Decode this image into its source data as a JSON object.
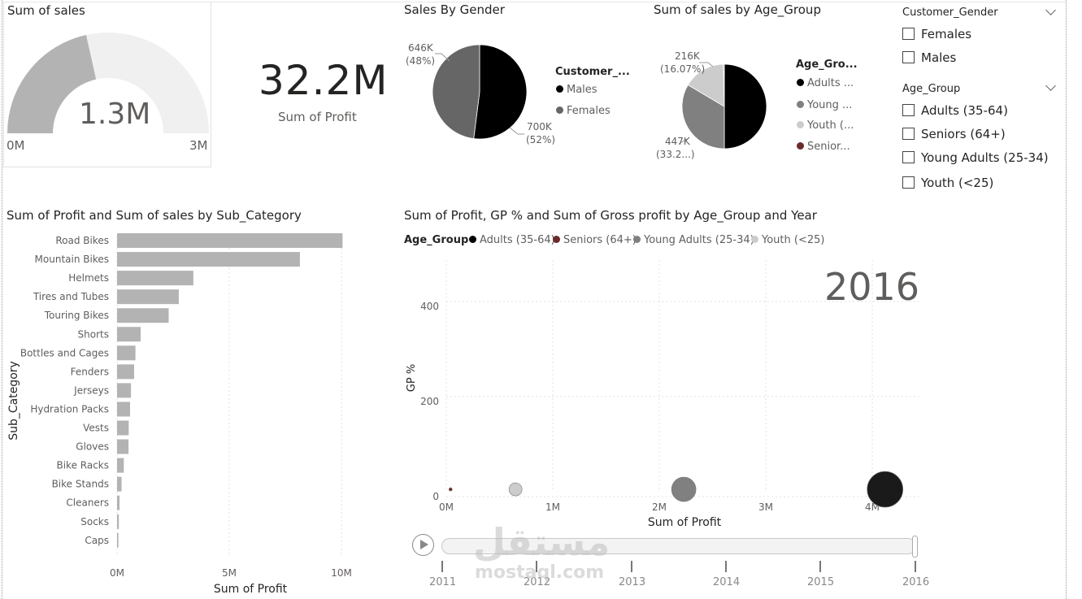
{
  "gauge": {
    "title": "Sum of sales",
    "value_label": "1.3M",
    "min_label": "0M",
    "max_label": "3M",
    "fill_fraction": 0.43,
    "fill_color": "#b3b3b3",
    "track_color": "#f0f0f0"
  },
  "kpi": {
    "value": "32.2M",
    "label": "Sum of Profit"
  },
  "gender_pie": {
    "title": "Sales By Gender",
    "legend_title": "Customer_...",
    "legend": [
      {
        "label": "Males",
        "color": "#000000"
      },
      {
        "label": "Females",
        "color": "#666666"
      }
    ],
    "labels": {
      "females_value": "646K",
      "females_pct": "(48%)",
      "males_value": "700K",
      "males_pct": "(52%)"
    }
  },
  "age_pie": {
    "title": "Sum of sales by Age_Group",
    "legend_title": "Age_Gro...",
    "legend": [
      {
        "label": "Adults ...",
        "color": "#000000"
      },
      {
        "label": "Young ...",
        "color": "#808080"
      },
      {
        "label": "Youth (...",
        "color": "#cccccc"
      },
      {
        "label": "Senior...",
        "color": "#6b2a2a"
      }
    ],
    "labels": {
      "youth_value": "216K",
      "youth_pct": "(16.07%)",
      "young_value": "447K",
      "young_pct": "(33.2...)"
    }
  },
  "slicers": {
    "gender": {
      "title": "Customer_Gender",
      "options": [
        "Females",
        "Males"
      ]
    },
    "age": {
      "title": "Age_Group",
      "options": [
        "Adults (35-64)",
        "Seniors (64+)",
        "Young Adults (25-34)",
        "Youth (<25)"
      ]
    }
  },
  "bar_chart": {
    "title": "Sum of Profit and Sum of sales by Sub_Category",
    "ylabel": "Sub_Category",
    "xlabel": "Sum of Profit",
    "x_ticks": [
      "0M",
      "5M",
      "10M"
    ],
    "bar_color": "#b3b3b3"
  },
  "scatter": {
    "title": "Sum of Profit, GP % and Sum of Gross profit by Age_Group and Year",
    "legend_title": "Age_Group",
    "legend": [
      {
        "label": "Adults (35-64)",
        "color": "#000000"
      },
      {
        "label": "Seniors (64+)",
        "color": "#6b2a2a"
      },
      {
        "label": "Young Adults (25-34)",
        "color": "#808080"
      },
      {
        "label": "Youth (<25)",
        "color": "#cccccc"
      }
    ],
    "year_label": "2016",
    "xlabel": "Sum of Profit",
    "ylabel": "GP %",
    "x_ticks": [
      "0M",
      "1M",
      "2M",
      "3M",
      "4M"
    ],
    "y_ticks": [
      "0",
      "200",
      "400"
    ]
  },
  "play_axis": {
    "years": [
      "2011",
      "2012",
      "2013",
      "2014",
      "2015",
      "2016"
    ],
    "current": "2016"
  },
  "watermark": {
    "text": "مستقل",
    "sub": "mostaql.com"
  },
  "chart_data": [
    {
      "type": "bar",
      "title": "Sum of Profit and Sum of sales by Sub_Category",
      "xlabel": "Sum of Profit",
      "ylabel": "Sub_Category",
      "xlim": [
        0,
        11000000
      ],
      "categories": [
        "Road Bikes",
        "Mountain Bikes",
        "Helmets",
        "Tires and Tubes",
        "Touring Bikes",
        "Shorts",
        "Bottles and Cages",
        "Fenders",
        "Jerseys",
        "Hydration Packs",
        "Vests",
        "Gloves",
        "Bike Racks",
        "Bike Stands",
        "Cleaners",
        "Socks",
        "Caps"
      ],
      "values": [
        10050000,
        8150000,
        3400000,
        2750000,
        2300000,
        1050000,
        820000,
        760000,
        620000,
        580000,
        520000,
        510000,
        300000,
        200000,
        110000,
        80000,
        60000
      ]
    },
    {
      "type": "pie",
      "title": "Sales By Gender",
      "categories": [
        "Males",
        "Females"
      ],
      "values": [
        700000,
        646000
      ],
      "percent": [
        52,
        48
      ]
    },
    {
      "type": "pie",
      "title": "Sum of sales by Age_Group",
      "categories": [
        "Adults (35-64)",
        "Young Adults (25-34)",
        "Youth (<25)",
        "Seniors (64+)"
      ],
      "values": [
        667000,
        447000,
        216000,
        4000
      ],
      "percent": [
        50.4,
        33.2,
        16.07,
        0.3
      ]
    },
    {
      "type": "scatter",
      "title": "Sum of Profit, GP % and Sum of Gross profit by Age_Group and Year",
      "xlabel": "Sum of Profit",
      "ylabel": "GP %",
      "xlim": [
        0,
        4500000
      ],
      "ylim": [
        0,
        450
      ],
      "series": [
        {
          "name": "Adults (35-64)",
          "x": [
            4120000
          ],
          "y": [
            5
          ],
          "size": [
            22
          ]
        },
        {
          "name": "Seniors (64+)",
          "x": [
            40000
          ],
          "y": [
            5
          ],
          "size": [
            2
          ]
        },
        {
          "name": "Young Adults (25-34)",
          "x": [
            2230000
          ],
          "y": [
            5
          ],
          "size": [
            15
          ]
        },
        {
          "name": "Youth (<25)",
          "x": [
            650000
          ],
          "y": [
            5
          ],
          "size": [
            8
          ]
        }
      ]
    }
  ]
}
